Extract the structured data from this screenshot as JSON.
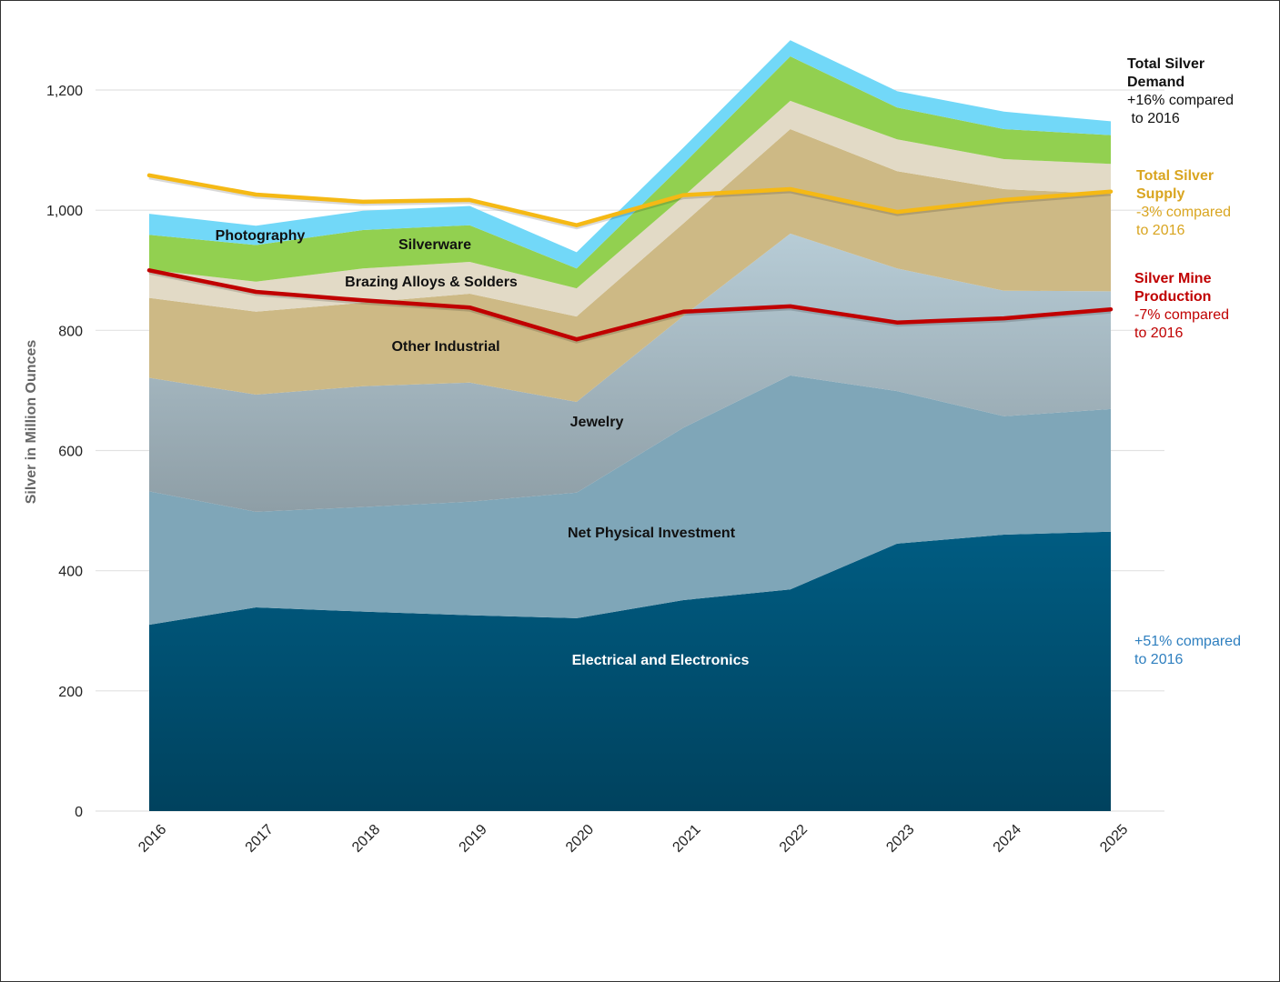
{
  "chart_data": {
    "type": "area",
    "stacked": true,
    "title": "",
    "xlabel": "",
    "ylabel": "Silver in Million Ounces",
    "ylim": [
      0,
      1300
    ],
    "yticks": [
      0,
      200,
      400,
      600,
      800,
      1000,
      1200
    ],
    "ytick_labels": [
      "0",
      "200",
      "400",
      "600",
      "800",
      "1,000",
      "1,200"
    ],
    "grid": true,
    "categories": [
      "2016",
      "2017",
      "2018",
      "2019",
      "2020",
      "2021",
      "2022",
      "2023",
      "2024",
      "2025"
    ],
    "series": [
      {
        "name": "Electrical and Electronics",
        "label_color": "#ffffff",
        "color": "#005a80",
        "values": [
          310,
          339,
          332,
          326,
          321,
          351,
          369,
          445,
          460,
          465
        ]
      },
      {
        "name": "Net Physical Investment",
        "label_color": "#111111",
        "color": "#7fa6b8",
        "values": [
          222,
          159,
          174,
          189,
          209,
          287,
          356,
          254,
          197,
          204
        ]
      },
      {
        "name": "Jewelry",
        "label_color": "#111111",
        "color": "#a9bdc6",
        "values": [
          189,
          195,
          201,
          198,
          151,
          186,
          236,
          204,
          209,
          196
        ]
      },
      {
        "name": "Other Industrial",
        "label_color": "#111111",
        "color": "#cdb985",
        "values": [
          133,
          138,
          139,
          148,
          142,
          154,
          174,
          162,
          169,
          162
        ]
      },
      {
        "name": "Brazing Alloys & Solders",
        "label_color": "#111111",
        "color": "#e2dac6",
        "values": [
          47,
          50,
          57,
          53,
          47,
          45,
          47,
          53,
          50,
          50
        ]
      },
      {
        "name": "Silverware",
        "label_color": "#111111",
        "color": "#92d050",
        "values": [
          58,
          61,
          64,
          61,
          33,
          54,
          74,
          53,
          50,
          48
        ]
      },
      {
        "name": "Photography",
        "label_color": "#111111",
        "color": "#72d8f8",
        "values": [
          35,
          32,
          32,
          32,
          27,
          27,
          27,
          27,
          29,
          23
        ]
      }
    ],
    "lines": [
      {
        "name": "Total Silver Supply",
        "color": "#f5b915",
        "values": [
          1058,
          1026,
          1014,
          1017,
          975,
          1025,
          1035,
          997,
          1017,
          1031
        ]
      },
      {
        "name": "Silver Mine Production",
        "color": "#c00000",
        "values": [
          900,
          864,
          850,
          838,
          785,
          831,
          840,
          813,
          820,
          835
        ]
      }
    ],
    "annotations": [
      {
        "id": "demand",
        "title": "Total Silver Demand",
        "text": "+16% compared to 2016",
        "color": "#111111"
      },
      {
        "id": "supply",
        "title": "Total Silver Supply",
        "text": "-3% compared to 2016",
        "color": "#d9a520"
      },
      {
        "id": "mine",
        "title": "Silver Mine Production",
        "text": "-7% compared to 2016",
        "color": "#c00000"
      },
      {
        "id": "electrical",
        "title": "",
        "text": "+51% compared to 2016",
        "color": "#2e7fbf"
      }
    ]
  },
  "annotations": {
    "demand_title_1": "Total Silver",
    "demand_title_2": "Demand",
    "demand_text_1": "+16% compared",
    "demand_text_2": " to 2016",
    "supply_title_1": "Total Silver",
    "supply_title_2": "Supply",
    "supply_text_1": "-3% compared",
    "supply_text_2": "to 2016",
    "mine_title_1": "Silver Mine",
    "mine_title_2": "Production",
    "mine_text_1": "-7% compared",
    "mine_text_2": "to 2016",
    "elec_text_1": "+51% compared",
    "elec_text_2": "to 2016"
  }
}
